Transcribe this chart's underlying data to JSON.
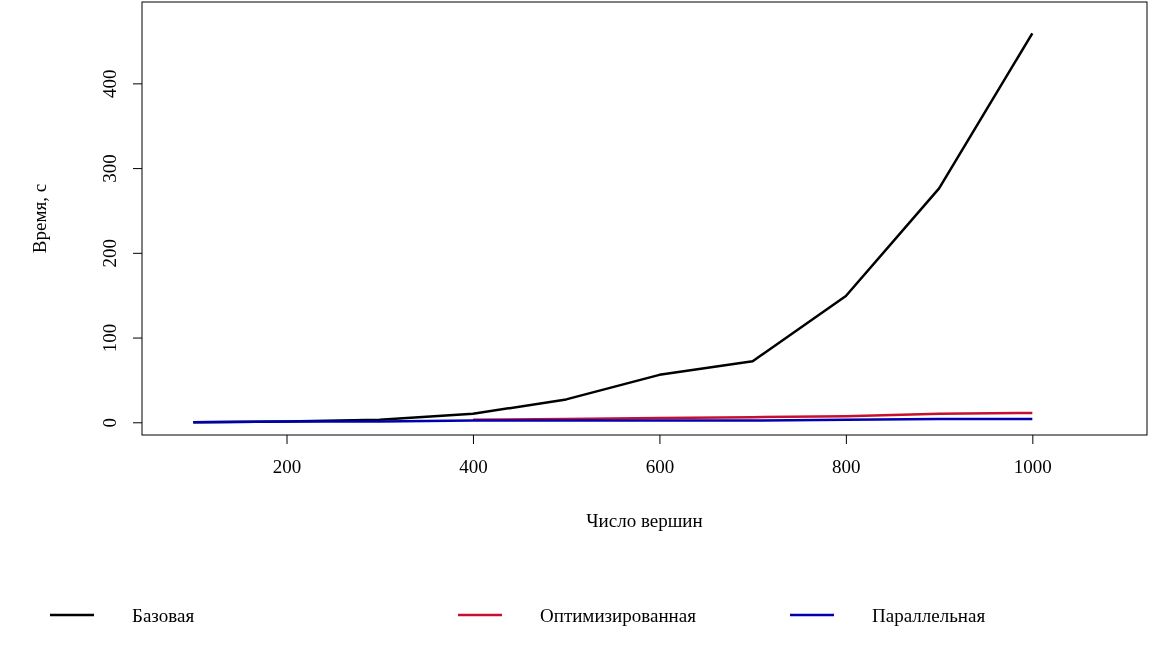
{
  "chart_data": {
    "type": "line",
    "xlabel": "Число вершин",
    "ylabel": "Время, с",
    "x": [
      100,
      200,
      300,
      400,
      500,
      600,
      700,
      800,
      900,
      1000
    ],
    "xlim": [
      45,
      1123
    ],
    "xticks": [
      200,
      400,
      600,
      800,
      1000
    ],
    "ylim": [
      -15,
      496
    ],
    "yticks": [
      0,
      100,
      200,
      300,
      400
    ],
    "series": [
      {
        "name": "Базовая",
        "color": "#000000",
        "values": [
          0,
          1,
          3,
          10,
          27,
          56,
          72,
          149,
          276,
          459
        ]
      },
      {
        "name": "Оптимизированная",
        "color": "#c8102e",
        "values": [
          null,
          null,
          null,
          3,
          4,
          5,
          6,
          7,
          10,
          11
        ]
      },
      {
        "name": "Параллельная",
        "color": "#0000b0",
        "values": [
          0,
          1,
          1,
          2,
          2,
          2,
          2,
          3,
          4,
          4
        ]
      }
    ],
    "grid": false,
    "legend": "bottom",
    "line_style": "solid",
    "marker": "none"
  }
}
